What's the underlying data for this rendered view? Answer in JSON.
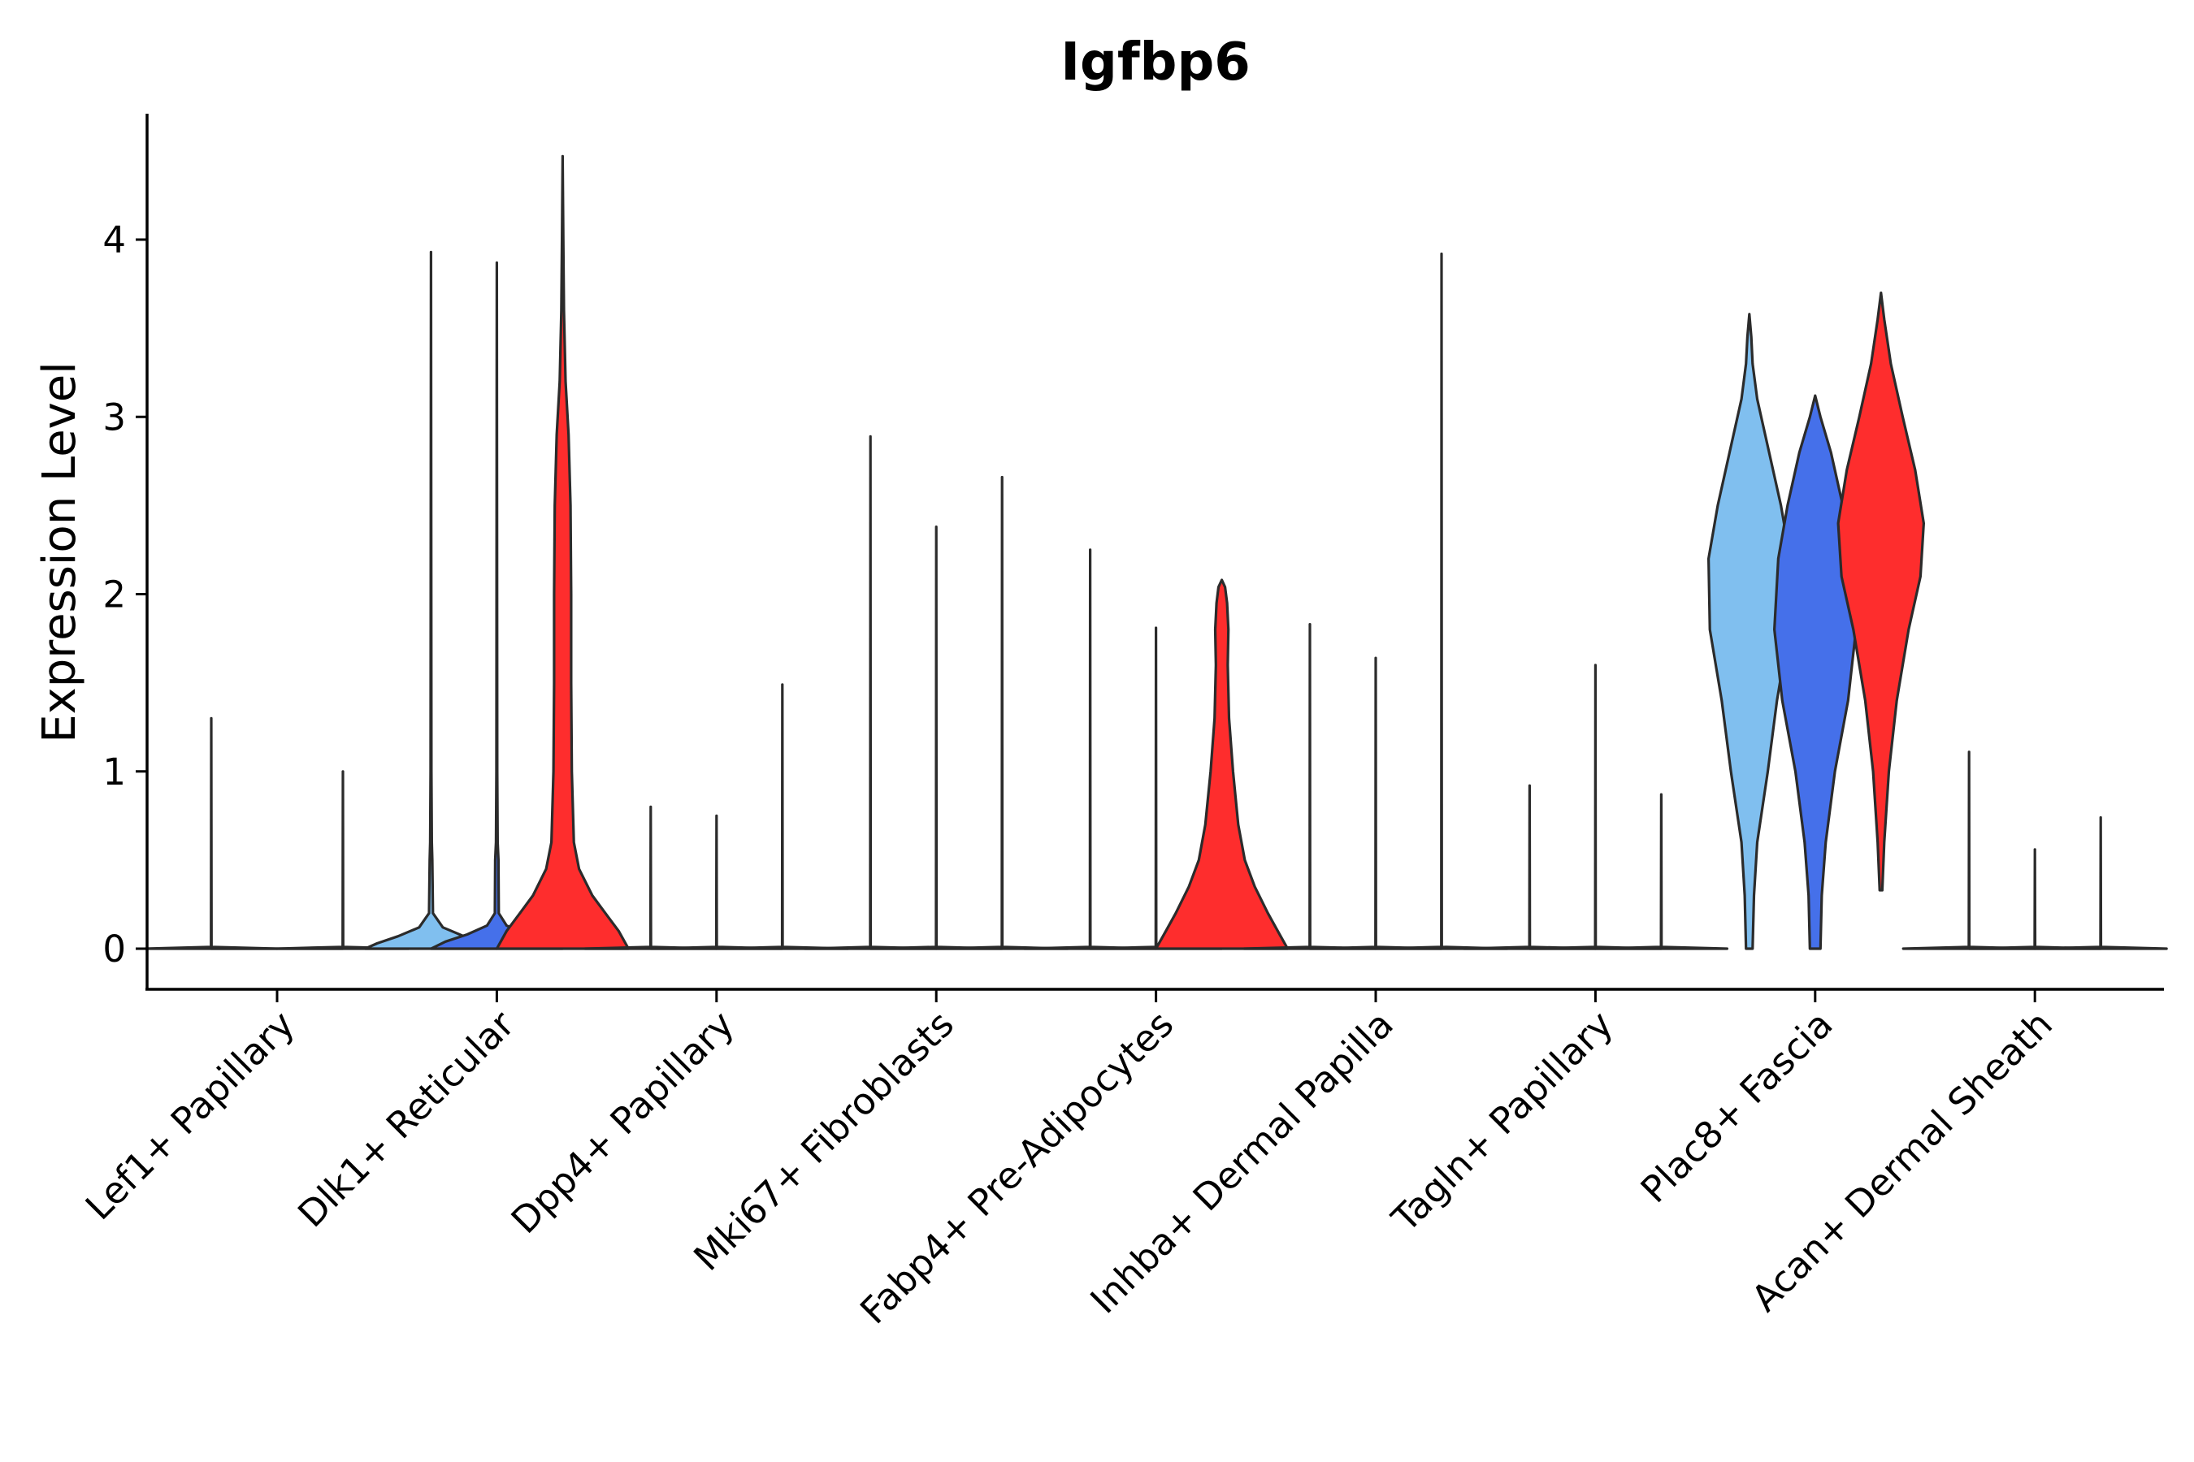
{
  "chart_data": {
    "type": "violin",
    "title": "Igfbp6",
    "xlabel": "",
    "ylabel": "Expression Level",
    "ylim": [
      -0.22,
      4.7
    ],
    "yticks": [
      0,
      1,
      2,
      3,
      4
    ],
    "categories": [
      "Lef1+ Papillary",
      "Dlk1+ Reticular",
      "Dpp4+ Papillary",
      "Mki67+ Fibroblasts",
      "Fabp4+ Pre-Adipocytes",
      "Inhba+ Dermal Papilla",
      "Tagln+ Papillary",
      "Plac8+ Fascia",
      "Acan+ Dermal Sheath"
    ],
    "series_colors": [
      "#80bfef",
      "#4570ea",
      "#fe2d2d"
    ],
    "violins": [
      {
        "category": "Lef1+ Papillary",
        "slot": 0,
        "color": "#80bfef",
        "min": 0,
        "max": 1.3,
        "profile": [
          [
            0,
            1.0
          ],
          [
            0.01,
            0.004
          ],
          [
            1.3,
            0
          ]
        ]
      },
      {
        "category": "Lef1+ Papillary",
        "slot": 1,
        "color": "#4570ea",
        "min": 0,
        "max": 0,
        "profile": [
          [
            0,
            1.0
          ]
        ]
      },
      {
        "category": "Lef1+ Papillary",
        "slot": 2,
        "color": "#fe2d2d",
        "min": 0,
        "max": 1.0,
        "profile": [
          [
            0,
            1.0
          ],
          [
            0.01,
            0.004
          ],
          [
            1.0,
            0
          ]
        ]
      },
      {
        "category": "Dlk1+ Reticular",
        "slot": 0,
        "color": "#80bfef",
        "min": 0,
        "max": 3.93,
        "profile": [
          [
            0,
            1.0
          ],
          [
            0.03,
            0.82
          ],
          [
            0.07,
            0.5
          ],
          [
            0.12,
            0.18
          ],
          [
            0.2,
            0.03
          ],
          [
            0.5,
            0.02
          ],
          [
            0.6,
            0.012
          ],
          [
            1.0,
            0.006
          ],
          [
            3.93,
            0
          ]
        ]
      },
      {
        "category": "Dlk1+ Reticular",
        "slot": 1,
        "color": "#4570ea",
        "min": 0,
        "max": 3.87,
        "profile": [
          [
            0,
            1.0
          ],
          [
            0.04,
            0.78
          ],
          [
            0.08,
            0.45
          ],
          [
            0.13,
            0.15
          ],
          [
            0.2,
            0.03
          ],
          [
            0.5,
            0.025
          ],
          [
            0.6,
            0.012
          ],
          [
            1.0,
            0.006
          ],
          [
            3.87,
            0
          ]
        ]
      },
      {
        "category": "Dlk1+ Reticular",
        "slot": 2,
        "color": "#fe2d2d",
        "min": 0,
        "max": 4.47,
        "profile": [
          [
            0,
            1.0
          ],
          [
            0.1,
            0.85
          ],
          [
            0.2,
            0.65
          ],
          [
            0.3,
            0.45
          ],
          [
            0.45,
            0.25
          ],
          [
            0.6,
            0.17
          ],
          [
            1.0,
            0.14
          ],
          [
            1.5,
            0.13
          ],
          [
            2.0,
            0.13
          ],
          [
            2.5,
            0.12
          ],
          [
            2.9,
            0.09
          ],
          [
            3.2,
            0.045
          ],
          [
            3.6,
            0.02
          ],
          [
            4.0,
            0.01
          ],
          [
            4.47,
            0
          ]
        ]
      },
      {
        "category": "Dpp4+ Papillary",
        "slot": 0,
        "color": "#80bfef",
        "min": 0,
        "max": 0.8,
        "profile": [
          [
            0,
            1.0
          ],
          [
            0.01,
            0.004
          ],
          [
            0.8,
            0
          ]
        ]
      },
      {
        "category": "Dpp4+ Papillary",
        "slot": 1,
        "color": "#4570ea",
        "min": 0,
        "max": 0.75,
        "profile": [
          [
            0,
            1.0
          ],
          [
            0.01,
            0.004
          ],
          [
            0.75,
            0
          ]
        ]
      },
      {
        "category": "Dpp4+ Papillary",
        "slot": 2,
        "color": "#fe2d2d",
        "min": 0,
        "max": 1.49,
        "profile": [
          [
            0,
            1.0
          ],
          [
            0.01,
            0.004
          ],
          [
            1.49,
            0
          ]
        ]
      },
      {
        "category": "Mki67+ Fibroblasts",
        "slot": 0,
        "color": "#80bfef",
        "min": 0,
        "max": 2.89,
        "profile": [
          [
            0,
            1.0
          ],
          [
            0.01,
            0.004
          ],
          [
            2.89,
            0
          ]
        ]
      },
      {
        "category": "Mki67+ Fibroblasts",
        "slot": 1,
        "color": "#4570ea",
        "min": 0,
        "max": 2.38,
        "profile": [
          [
            0,
            1.0
          ],
          [
            0.01,
            0.004
          ],
          [
            2.38,
            0
          ]
        ]
      },
      {
        "category": "Mki67+ Fibroblasts",
        "slot": 2,
        "color": "#fe2d2d",
        "min": 0,
        "max": 2.66,
        "profile": [
          [
            0,
            1.0
          ],
          [
            0.01,
            0.004
          ],
          [
            2.66,
            0
          ]
        ]
      },
      {
        "category": "Fabp4+ Pre-Adipocytes",
        "slot": 0,
        "color": "#80bfef",
        "min": 0,
        "max": 2.25,
        "profile": [
          [
            0,
            1.0
          ],
          [
            0.01,
            0.004
          ],
          [
            2.25,
            0
          ]
        ]
      },
      {
        "category": "Fabp4+ Pre-Adipocytes",
        "slot": 1,
        "color": "#4570ea",
        "min": 0,
        "max": 1.81,
        "profile": [
          [
            0,
            1.0
          ],
          [
            0.01,
            0.004
          ],
          [
            1.81,
            0
          ]
        ]
      },
      {
        "category": "Fabp4+ Pre-Adipocytes",
        "slot": 2,
        "color": "#fe2d2d",
        "min": 0,
        "max": 2.08,
        "profile": [
          [
            0,
            1.0
          ],
          [
            0.1,
            0.85
          ],
          [
            0.2,
            0.7
          ],
          [
            0.35,
            0.5
          ],
          [
            0.5,
            0.35
          ],
          [
            0.7,
            0.25
          ],
          [
            1.0,
            0.17
          ],
          [
            1.3,
            0.11
          ],
          [
            1.6,
            0.09
          ],
          [
            1.8,
            0.1
          ],
          [
            1.95,
            0.08
          ],
          [
            2.04,
            0.05
          ],
          [
            2.08,
            0
          ]
        ]
      },
      {
        "category": "Inhba+ Dermal Papilla",
        "slot": 0,
        "color": "#80bfef",
        "min": 0,
        "max": 1.83,
        "profile": [
          [
            0,
            1.0
          ],
          [
            0.01,
            0.004
          ],
          [
            1.83,
            0
          ]
        ]
      },
      {
        "category": "Inhba+ Dermal Papilla",
        "slot": 1,
        "color": "#4570ea",
        "min": 0,
        "max": 1.64,
        "profile": [
          [
            0,
            1.0
          ],
          [
            0.01,
            0.004
          ],
          [
            1.64,
            0
          ]
        ]
      },
      {
        "category": "Inhba+ Dermal Papilla",
        "slot": 2,
        "color": "#fe2d2d",
        "min": 0,
        "max": 3.92,
        "profile": [
          [
            0,
            1.0
          ],
          [
            0.01,
            0.004
          ],
          [
            3.92,
            0
          ]
        ]
      },
      {
        "category": "Tagln+ Papillary",
        "slot": 0,
        "color": "#80bfef",
        "min": 0,
        "max": 0.92,
        "profile": [
          [
            0,
            1.0
          ],
          [
            0.01,
            0.004
          ],
          [
            0.92,
            0
          ]
        ]
      },
      {
        "category": "Tagln+ Papillary",
        "slot": 1,
        "color": "#4570ea",
        "min": 0,
        "max": 1.6,
        "profile": [
          [
            0,
            1.0
          ],
          [
            0.01,
            0.004
          ],
          [
            1.6,
            0
          ]
        ]
      },
      {
        "category": "Tagln+ Papillary",
        "slot": 2,
        "color": "#fe2d2d",
        "min": 0,
        "max": 0.87,
        "profile": [
          [
            0,
            1.0
          ],
          [
            0.01,
            0.004
          ],
          [
            0.87,
            0
          ]
        ]
      },
      {
        "category": "Plac8+ Fascia",
        "slot": 0,
        "color": "#80bfef",
        "min": 0,
        "max": 3.58,
        "profile": [
          [
            0,
            0.05
          ],
          [
            0.3,
            0.07
          ],
          [
            0.6,
            0.12
          ],
          [
            1.0,
            0.28
          ],
          [
            1.4,
            0.42
          ],
          [
            1.8,
            0.6
          ],
          [
            2.2,
            0.62
          ],
          [
            2.5,
            0.48
          ],
          [
            2.8,
            0.3
          ],
          [
            3.1,
            0.12
          ],
          [
            3.3,
            0.05
          ],
          [
            3.45,
            0.03
          ],
          [
            3.58,
            0
          ]
        ]
      },
      {
        "category": "Plac8+ Fascia",
        "slot": 1,
        "color": "#4570ea",
        "min": 0,
        "max": 3.12,
        "profile": [
          [
            0,
            0.08
          ],
          [
            0.3,
            0.1
          ],
          [
            0.6,
            0.16
          ],
          [
            1.0,
            0.3
          ],
          [
            1.4,
            0.5
          ],
          [
            1.8,
            0.62
          ],
          [
            2.2,
            0.56
          ],
          [
            2.5,
            0.42
          ],
          [
            2.8,
            0.24
          ],
          [
            3.0,
            0.08
          ],
          [
            3.12,
            0
          ]
        ]
      },
      {
        "category": "Plac8+ Fascia",
        "slot": 2,
        "color": "#fe2d2d",
        "min": 0.33,
        "max": 3.7,
        "profile": [
          [
            0.33,
            0.02
          ],
          [
            0.6,
            0.05
          ],
          [
            1.0,
            0.12
          ],
          [
            1.4,
            0.24
          ],
          [
            1.8,
            0.42
          ],
          [
            2.1,
            0.6
          ],
          [
            2.4,
            0.65
          ],
          [
            2.7,
            0.52
          ],
          [
            3.0,
            0.33
          ],
          [
            3.3,
            0.15
          ],
          [
            3.55,
            0.05
          ],
          [
            3.7,
            0
          ]
        ]
      },
      {
        "category": "Acan+ Dermal Sheath",
        "slot": 0,
        "color": "#80bfef",
        "min": 0,
        "max": 1.11,
        "profile": [
          [
            0,
            1.0
          ],
          [
            0.01,
            0.004
          ],
          [
            1.11,
            0
          ]
        ]
      },
      {
        "category": "Acan+ Dermal Sheath",
        "slot": 1,
        "color": "#4570ea",
        "min": 0,
        "max": 0.56,
        "profile": [
          [
            0,
            1.0
          ],
          [
            0.01,
            0.004
          ],
          [
            0.56,
            0
          ]
        ]
      },
      {
        "category": "Acan+ Dermal Sheath",
        "slot": 2,
        "color": "#fe2d2d",
        "min": 0,
        "max": 0.74,
        "profile": [
          [
            0,
            1.0
          ],
          [
            0.01,
            0.004
          ],
          [
            0.74,
            0
          ]
        ]
      }
    ],
    "grid": false,
    "legend": "none"
  }
}
